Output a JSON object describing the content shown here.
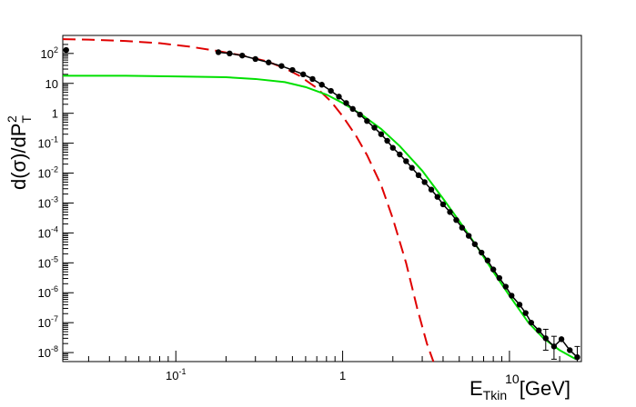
{
  "chart_data": {
    "type": "scatter",
    "title": "",
    "xlabel": {
      "base": "E",
      "subscript": "Tkin",
      "overlay_power": "10",
      "unit": "[GeV]"
    },
    "ylabel": {
      "prefix": "d(σ)/dP",
      "superscript": "2",
      "subscript": "T"
    },
    "x_scale": "log",
    "y_scale": "log",
    "xlim": [
      0.021,
      27
    ],
    "ylim": [
      5e-09,
      400
    ],
    "x_ticks": [
      {
        "value": 0.1,
        "mantissa": "10",
        "exp": "-1"
      },
      {
        "value": 1,
        "mantissa": "1",
        "exp": ""
      },
      {
        "value": 10,
        "mantissa": "",
        "exp": ""
      }
    ],
    "y_ticks": [
      {
        "value": 1e-08,
        "mantissa": "10",
        "exp": "-8"
      },
      {
        "value": 1e-07,
        "mantissa": "10",
        "exp": "-7"
      },
      {
        "value": 1e-06,
        "mantissa": "10",
        "exp": "-6"
      },
      {
        "value": 1e-05,
        "mantissa": "10",
        "exp": "-5"
      },
      {
        "value": 0.0001,
        "mantissa": "10",
        "exp": "-4"
      },
      {
        "value": 0.001,
        "mantissa": "10",
        "exp": "-3"
      },
      {
        "value": 0.01,
        "mantissa": "10",
        "exp": "-2"
      },
      {
        "value": 0.1,
        "mantissa": "10",
        "exp": "-1"
      },
      {
        "value": 1,
        "mantissa": "1",
        "exp": ""
      },
      {
        "value": 10,
        "mantissa": "10",
        "exp": ""
      },
      {
        "value": 100,
        "mantissa": "10",
        "exp": "2"
      }
    ],
    "grid": false,
    "legend": "none",
    "series": [
      {
        "kind": "points",
        "color": "#000000",
        "points": [
          [
            0.022,
            130
          ],
          [
            0.18,
            110
          ],
          [
            0.21,
            100
          ],
          [
            0.25,
            85
          ],
          [
            0.3,
            65
          ],
          [
            0.36,
            50
          ],
          [
            0.43,
            38
          ],
          [
            0.5,
            28
          ],
          [
            0.58,
            20
          ],
          [
            0.66,
            14
          ],
          [
            0.75,
            9
          ],
          [
            0.85,
            5.6
          ],
          [
            0.95,
            3.6
          ],
          [
            1.05,
            2.2
          ],
          [
            1.15,
            1.4
          ],
          [
            1.27,
            0.9
          ],
          [
            1.4,
            0.55
          ],
          [
            1.55,
            0.33
          ],
          [
            1.7,
            0.2
          ],
          [
            1.85,
            0.12
          ],
          [
            2.0,
            0.07
          ],
          [
            2.2,
            0.042
          ],
          [
            2.4,
            0.025
          ],
          [
            2.6,
            0.015
          ],
          [
            2.85,
            0.0085
          ],
          [
            3.1,
            0.005
          ],
          [
            3.4,
            0.0028
          ],
          [
            3.7,
            0.0016
          ],
          [
            4.0,
            0.0009
          ],
          [
            4.4,
            0.0005
          ],
          [
            4.8,
            0.00027
          ],
          [
            5.2,
            0.00015
          ],
          [
            5.7,
            8e-05
          ],
          [
            6.2,
            4.2e-05
          ],
          [
            6.8,
            2.2e-05
          ],
          [
            7.4,
            1.2e-05
          ],
          [
            8.0,
            6e-06
          ],
          [
            8.7,
            3.1e-06
          ],
          [
            9.5,
            1.6e-06
          ],
          [
            10.3,
            8e-07
          ],
          [
            11.5,
            4e-07
          ],
          [
            12.5,
            2.1e-07
          ],
          [
            13.5,
            1e-07
          ],
          [
            15,
            5.5e-08
          ],
          [
            16.5,
            3e-08
          ],
          [
            18.5,
            1.6e-08
          ],
          [
            20.5,
            2.8e-08
          ],
          [
            23,
            1.2e-08
          ],
          [
            25.5,
            7e-09
          ]
        ],
        "error_bars": [
          {
            "x": 16.5,
            "lo": 1.2e-08,
            "hi": 6e-08
          },
          {
            "x": 18.5,
            "lo": 6e-09,
            "hi": 3.5e-08
          },
          {
            "x": 25.5,
            "lo": 5e-09,
            "hi": 1.6e-08
          }
        ]
      },
      {
        "kind": "line",
        "style": "dashed",
        "color": "#e00000",
        "points": [
          [
            0.021,
            300
          ],
          [
            0.03,
            290
          ],
          [
            0.05,
            260
          ],
          [
            0.08,
            220
          ],
          [
            0.12,
            170
          ],
          [
            0.18,
            120
          ],
          [
            0.25,
            85
          ],
          [
            0.35,
            55
          ],
          [
            0.45,
            32
          ],
          [
            0.55,
            18
          ],
          [
            0.7,
            7
          ],
          [
            0.85,
            2.5
          ],
          [
            1.0,
            0.8
          ],
          [
            1.2,
            0.18
          ],
          [
            1.4,
            0.04
          ],
          [
            1.7,
            0.004
          ],
          [
            2.0,
            0.0003
          ],
          [
            2.4,
            1e-05
          ],
          [
            2.8,
            3e-07
          ],
          [
            3.2,
            2e-08
          ],
          [
            3.5,
            5e-09
          ]
        ]
      },
      {
        "kind": "line",
        "style": "solid",
        "color": "#00e000",
        "points": [
          [
            0.021,
            18
          ],
          [
            0.05,
            18
          ],
          [
            0.1,
            17
          ],
          [
            0.2,
            16
          ],
          [
            0.3,
            14
          ],
          [
            0.45,
            11
          ],
          [
            0.6,
            7.5
          ],
          [
            0.8,
            4.2
          ],
          [
            1.0,
            2.2
          ],
          [
            1.3,
            0.9
          ],
          [
            1.7,
            0.3
          ],
          [
            2.2,
            0.08
          ],
          [
            3.0,
            0.012
          ],
          [
            4.0,
            0.0014
          ],
          [
            5.0,
            0.00025
          ],
          [
            6.5,
            3e-05
          ],
          [
            8.0,
            5e-06
          ],
          [
            10,
            8e-07
          ],
          [
            13,
            1e-07
          ],
          [
            16,
            3e-08
          ],
          [
            20,
            1.2e-08
          ],
          [
            25,
            6e-09
          ]
        ]
      }
    ]
  }
}
